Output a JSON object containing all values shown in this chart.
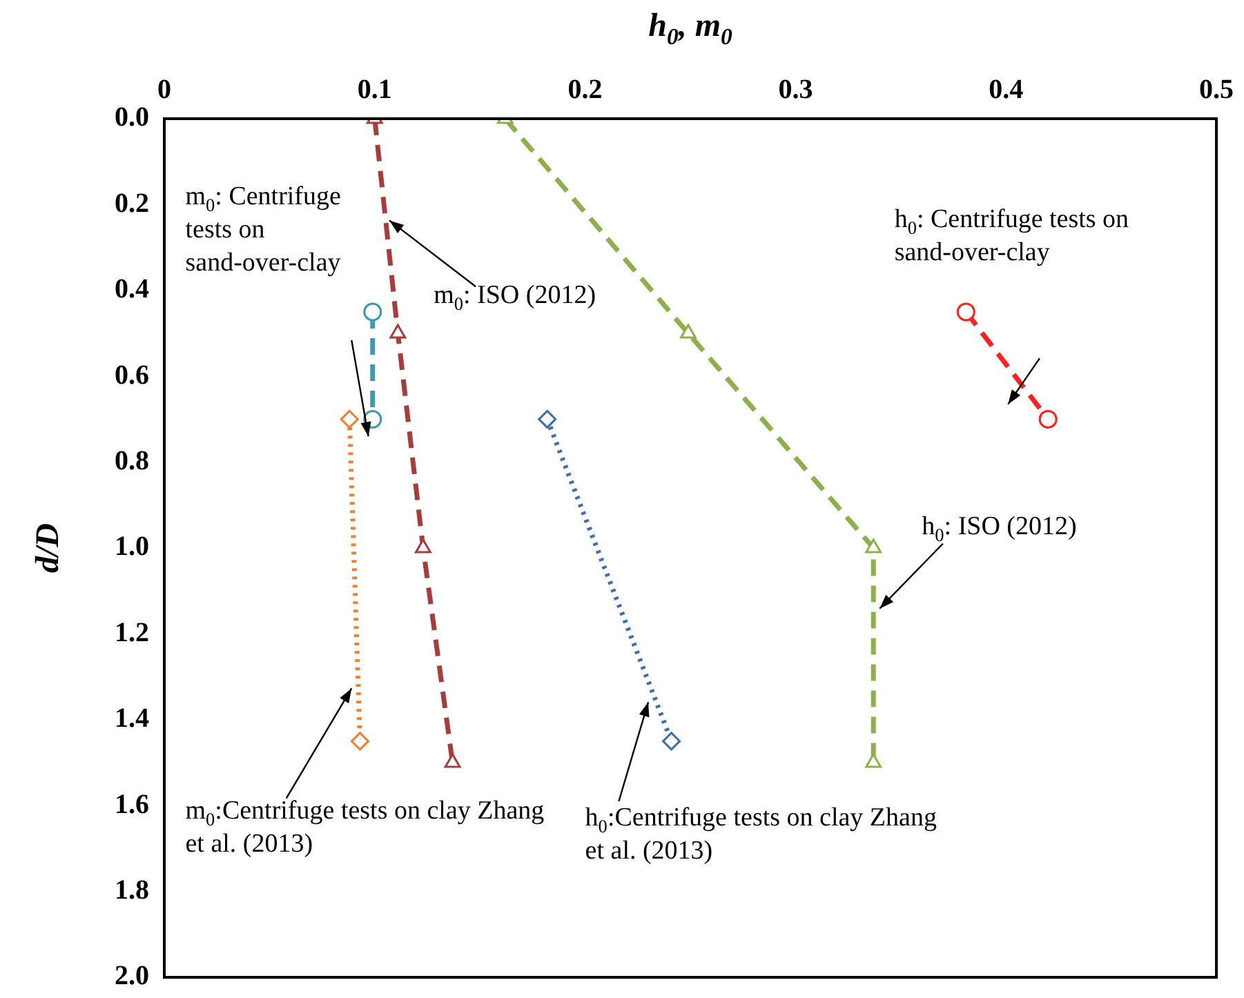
{
  "chart_data": {
    "type": "line",
    "xlabel": "h$_{0}$, m$_{0}$",
    "ylabel": "d/D",
    "xlim": [
      0,
      0.5
    ],
    "xticks": [
      0,
      0.1,
      0.2,
      0.3,
      0.4,
      0.5
    ],
    "ylim": [
      2.0,
      0.0
    ],
    "yticks": [
      {
        "value": 0,
        "label": "0.0"
      },
      0.2,
      0.4,
      0.6,
      0.8,
      {
        "value": 1,
        "label": "1.0"
      },
      1.2,
      1.4,
      1.6,
      1.8,
      {
        "value": 2,
        "label": "2.0"
      }
    ],
    "grid": false,
    "legend": false,
    "series": [
      {
        "color": "#a83c3c",
        "marker": "triangle",
        "line_style": "dashed",
        "x": [
          0.1,
          0.111,
          0.123,
          0.137
        ],
        "values": [
          0,
          0.5,
          1.0,
          1.5
        ]
      },
      {
        "color": "#8db04a",
        "marker": "triangle",
        "line_style": "dashed",
        "x": [
          0.162,
          0.249,
          0.337,
          0.337
        ],
        "values": [
          0,
          0.5,
          1.0,
          1.5
        ]
      },
      {
        "color": "#3d9bb0",
        "marker": "circle",
        "line_style": "dashed",
        "x": [
          0.099,
          0.099
        ],
        "values": [
          0.45,
          0.7
        ]
      },
      {
        "color": "#ff2020",
        "marker": "circle",
        "line_style": "dashed",
        "x": [
          0.381,
          0.42
        ],
        "values": [
          0.45,
          0.7
        ]
      },
      {
        "color": "#f08030",
        "marker": "diamond",
        "line_style": "dotted",
        "x": [
          0.088,
          0.093
        ],
        "values": [
          0.7,
          1.45
        ]
      },
      {
        "color": "#3c6eb4",
        "marker": "diamond",
        "line_style": "dotted",
        "x": [
          0.182,
          0.241
        ],
        "values": [
          0.7,
          1.45
        ]
      }
    ],
    "annotations": [
      "m$_{0}$: Centrifuge tests on sand-over-clay",
      {
        "text": "m$_{0}$: ISO (2012)",
        "x": 0.107,
        "y": 0.237
      },
      "h$_{0}$: Centrifuge tests on sand-over-clay",
      {
        "text": "h$_{0}$: ISO (2012)",
        "x": 0.34,
        "y": 1.141
      },
      {
        "text": "m$_{0}$:Centrifuge tests on clay Zhang et al. (2013)",
        "x": 0.089,
        "y": 1.327
      },
      {
        "text": "h$_{0}$:Centrifuge tests on clay Zhang et al. (2013)",
        "x": 0.23,
        "y": 1.359
      }
    ]
  }
}
